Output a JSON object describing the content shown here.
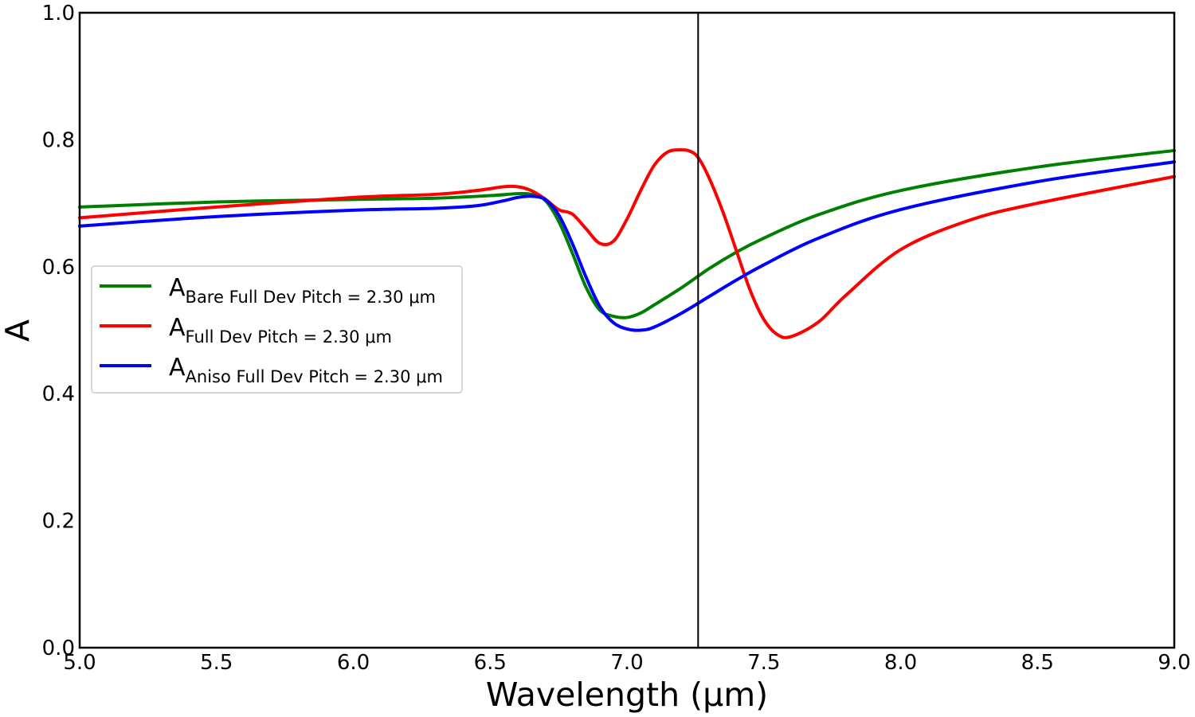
{
  "chart_data": {
    "type": "line",
    "title": "",
    "xlabel": "Wavelength (μm)",
    "ylabel": "A",
    "xlim": [
      5.0,
      9.0
    ],
    "ylim": [
      0.0,
      1.0
    ],
    "x_ticks": [
      "5.0",
      "5.5",
      "6.0",
      "6.5",
      "7.0",
      "7.5",
      "8.0",
      "8.5",
      "9.0"
    ],
    "y_ticks": [
      "0.0",
      "0.2",
      "0.4",
      "0.6",
      "0.8",
      "1.0"
    ],
    "x_tick_values": [
      5.0,
      5.5,
      6.0,
      6.5,
      7.0,
      7.5,
      8.0,
      8.5,
      9.0
    ],
    "y_tick_values": [
      0.0,
      0.2,
      0.4,
      0.6,
      0.8,
      1.0
    ],
    "grid": false,
    "legend_position": "center-left",
    "vertical_line_x": 7.26,
    "series": [
      {
        "legend_main": "A",
        "legend_sub": "Bare Full Dev Pitch",
        "legend_value": "= 2.30 μm",
        "color": "#008000",
        "x": [
          5.0,
          5.5,
          6.0,
          6.3,
          6.5,
          6.6,
          6.65,
          6.7,
          6.75,
          6.8,
          6.85,
          6.9,
          6.95,
          7.0,
          7.05,
          7.1,
          7.2,
          7.3,
          7.4,
          7.5,
          7.7,
          8.0,
          8.5,
          9.0
        ],
        "y": [
          0.694,
          0.702,
          0.706,
          0.708,
          0.712,
          0.715,
          0.714,
          0.705,
          0.672,
          0.622,
          0.568,
          0.532,
          0.522,
          0.52,
          0.527,
          0.54,
          0.567,
          0.597,
          0.623,
          0.645,
          0.682,
          0.72,
          0.757,
          0.783
        ]
      },
      {
        "legend_main": "A",
        "legend_sub": "Full Dev Pitch",
        "legend_value": "= 2.30 μm",
        "color": "#ff0000",
        "x": [
          5.0,
          5.5,
          6.0,
          6.3,
          6.45,
          6.55,
          6.6,
          6.65,
          6.7,
          6.75,
          6.8,
          6.85,
          6.9,
          6.95,
          7.0,
          7.05,
          7.1,
          7.15,
          7.2,
          7.23,
          7.26,
          7.3,
          7.35,
          7.4,
          7.45,
          7.5,
          7.55,
          7.6,
          7.7,
          7.8,
          8.0,
          8.25,
          8.5,
          9.0
        ],
        "y": [
          0.677,
          0.694,
          0.709,
          0.714,
          0.72,
          0.726,
          0.726,
          0.72,
          0.707,
          0.69,
          0.683,
          0.66,
          0.637,
          0.64,
          0.675,
          0.72,
          0.76,
          0.781,
          0.784,
          0.782,
          0.772,
          0.74,
          0.687,
          0.625,
          0.563,
          0.517,
          0.493,
          0.49,
          0.513,
          0.555,
          0.627,
          0.673,
          0.7,
          0.742
        ]
      },
      {
        "legend_main": "A",
        "legend_sub": "Aniso Full Dev Pitch",
        "legend_value": "= 2.30 μm",
        "color": "#0000ff",
        "x": [
          5.0,
          5.5,
          6.0,
          6.3,
          6.45,
          6.55,
          6.6,
          6.65,
          6.7,
          6.75,
          6.8,
          6.85,
          6.9,
          6.95,
          7.0,
          7.05,
          7.1,
          7.2,
          7.3,
          7.4,
          7.5,
          7.7,
          8.0,
          8.5,
          9.0
        ],
        "y": [
          0.664,
          0.679,
          0.689,
          0.692,
          0.696,
          0.704,
          0.709,
          0.711,
          0.706,
          0.682,
          0.637,
          0.584,
          0.538,
          0.512,
          0.502,
          0.5,
          0.505,
          0.527,
          0.553,
          0.579,
          0.603,
          0.645,
          0.69,
          0.734,
          0.765
        ]
      }
    ]
  }
}
